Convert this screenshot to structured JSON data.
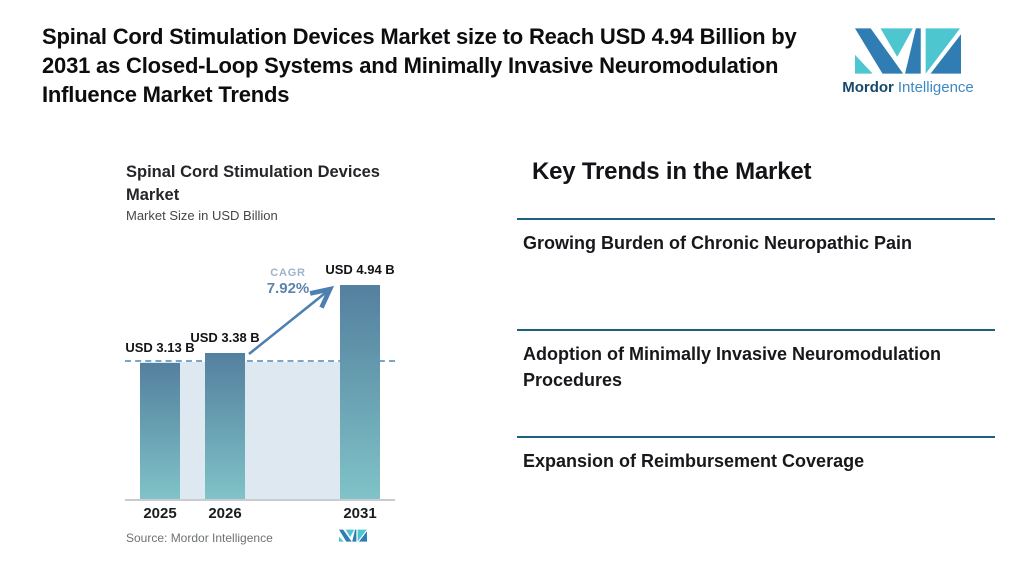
{
  "header": {
    "title": "Spinal Cord Stimulation Devices Market size to Reach USD 4.94 Billion by 2031 as Closed-Loop Systems and Minimally Invasive Neuromodulation Influence Market Trends",
    "brand": {
      "name_bold": "Mordor",
      "name_light": "Intelligence"
    }
  },
  "chart": {
    "title_lines": {
      "0": "Spinal Cord Stimulation Devices",
      "1": "Market"
    },
    "subtitle": "Market Size in USD Billion"
  },
  "chart_data": {
    "type": "bar",
    "title": "Spinal Cord Stimulation Devices Market",
    "subtitle": "Market Size in USD Billion",
    "categories": [
      "2025",
      "2026",
      "2031"
    ],
    "values": [
      3.13,
      3.38,
      4.94
    ],
    "bar_labels": [
      "USD 3.13 B",
      "USD 3.38 B",
      "USD 4.94 B"
    ],
    "annotations": {
      "cagr_label": "CAGR",
      "cagr_value": "7.92%"
    },
    "ylim": [
      0,
      5.2
    ],
    "grid": false,
    "reference_line_at": 3.13,
    "colors": {
      "bar_top": "#54809f",
      "bar_bottom": "#80c3c8",
      "plot_background": "#dde8f1",
      "dashed_reference": "#7aa6c9",
      "arrow": "#4d80b0",
      "cagr_label_color": "#9eb3cd",
      "cagr_value_color": "#5e84ad"
    }
  },
  "trends": {
    "heading": "Key Trends in the Market",
    "items": {
      "0": "Growing Burden of Chronic Neuropathic Pain",
      "1": "Adoption of Minimally Invasive Neuromodulation Procedures",
      "2": "Expansion of Reimbursement Coverage"
    },
    "divider_color": "#1d617f"
  },
  "footer": {
    "source": "Source: Mordor Intelligence"
  }
}
